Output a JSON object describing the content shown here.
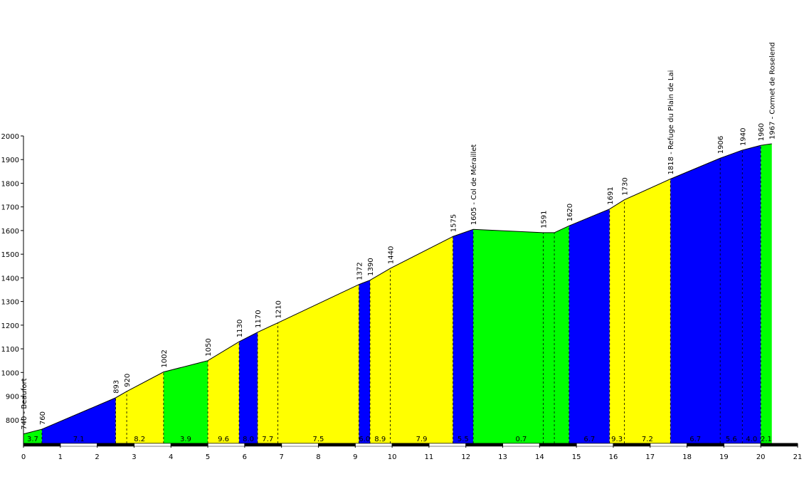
{
  "chart_data": {
    "type": "area",
    "title": "",
    "xlabel": "",
    "ylabel": "",
    "xlim": [
      0,
      21
    ],
    "ylim": [
      700,
      2000
    ],
    "grid": false,
    "legend": "none",
    "x_ticks": [
      "0",
      "1",
      "2",
      "3",
      "4",
      "5",
      "6",
      "7",
      "8",
      "9",
      "10",
      "11",
      "12",
      "13",
      "14",
      "15",
      "16",
      "17",
      "18",
      "19",
      "20",
      "21"
    ],
    "y_ticks": [
      "800",
      "900",
      "1000",
      "1100",
      "1200",
      "1300",
      "1400",
      "1500",
      "1600",
      "1700",
      "1800",
      "1900",
      "2000"
    ],
    "colors": {
      "blue": "#0000ff",
      "yellow": "#ffff00",
      "green": "#00ff00",
      "outline": "#000000"
    },
    "profile": [
      {
        "x": 0.0,
        "y": 740,
        "label": "740 - Beaufort"
      },
      {
        "x": 0.5,
        "y": 760,
        "label": "760"
      },
      {
        "x": 2.5,
        "y": 893,
        "label": "893"
      },
      {
        "x": 2.8,
        "y": 920,
        "label": "920"
      },
      {
        "x": 3.8,
        "y": 1002,
        "label": "1002"
      },
      {
        "x": 5.0,
        "y": 1050,
        "label": "1050"
      },
      {
        "x": 5.85,
        "y": 1130,
        "label": "1130"
      },
      {
        "x": 6.35,
        "y": 1170,
        "label": "1170"
      },
      {
        "x": 6.9,
        "y": 1210,
        "label": "1210"
      },
      {
        "x": 9.1,
        "y": 1372,
        "label": "1372"
      },
      {
        "x": 9.4,
        "y": 1390,
        "label": "1390"
      },
      {
        "x": 9.95,
        "y": 1440,
        "label": "1440"
      },
      {
        "x": 11.65,
        "y": 1575,
        "label": "1575"
      },
      {
        "x": 12.2,
        "y": 1605,
        "label": "1605 - Col de Méraillet"
      },
      {
        "x": 14.1,
        "y": 1591,
        "label": "1591"
      },
      {
        "x": 14.4,
        "y": 1591,
        "label": ""
      },
      {
        "x": 14.8,
        "y": 1620,
        "label": "1620"
      },
      {
        "x": 15.9,
        "y": 1691,
        "label": "1691"
      },
      {
        "x": 16.3,
        "y": 1730,
        "label": "1730"
      },
      {
        "x": 17.55,
        "y": 1818,
        "label": "1818 - Refuge du Plain de Lai"
      },
      {
        "x": 18.9,
        "y": 1906,
        "label": "1906"
      },
      {
        "x": 19.5,
        "y": 1940,
        "label": "1940"
      },
      {
        "x": 20.0,
        "y": 1960,
        "label": "1960"
      },
      {
        "x": 20.3,
        "y": 1967,
        "label": "1967 - Cormet de Roselend"
      }
    ],
    "segments": [
      {
        "from": 0.0,
        "to": 0.5,
        "color": "green",
        "gradient": "3.7"
      },
      {
        "from": 0.5,
        "to": 2.5,
        "color": "blue",
        "gradient": "7.1"
      },
      {
        "from": 2.5,
        "to": 3.8,
        "color": "yellow",
        "gradient": "8.2"
      },
      {
        "from": 3.8,
        "to": 5.0,
        "color": "green",
        "gradient": "3.9"
      },
      {
        "from": 5.0,
        "to": 5.85,
        "color": "yellow",
        "gradient": "9.6"
      },
      {
        "from": 5.85,
        "to": 6.35,
        "color": "blue",
        "gradient": "8.0"
      },
      {
        "from": 6.35,
        "to": 9.1,
        "color": "yellow",
        "gradient": "7.7"
      },
      {
        "from": 6.9,
        "to": 9.1,
        "color": "yellow",
        "gradient": "7.5"
      },
      {
        "from": 9.1,
        "to": 9.4,
        "color": "blue",
        "gradient": "6.0"
      },
      {
        "from": 9.4,
        "to": 11.65,
        "color": "yellow",
        "gradient": "8.9"
      },
      {
        "from": 9.95,
        "to": 11.65,
        "color": "yellow",
        "gradient": "7.9"
      },
      {
        "from": 11.65,
        "to": 12.2,
        "color": "blue",
        "gradient": "5.5"
      },
      {
        "from": 12.2,
        "to": 14.8,
        "color": "green",
        "gradient": "0.7"
      },
      {
        "from": 14.8,
        "to": 15.9,
        "color": "blue",
        "gradient": "6.7"
      },
      {
        "from": 15.9,
        "to": 17.55,
        "color": "yellow",
        "gradient": "9.3"
      },
      {
        "from": 16.3,
        "to": 17.55,
        "color": "yellow",
        "gradient": "7.2"
      },
      {
        "from": 17.55,
        "to": 19.5,
        "color": "blue",
        "gradient": "6.7"
      },
      {
        "from": 18.9,
        "to": 19.5,
        "color": "blue",
        "gradient": "5.6"
      },
      {
        "from": 19.5,
        "to": 20.0,
        "color": "blue",
        "gradient": "4.0"
      },
      {
        "from": 20.0,
        "to": 20.3,
        "color": "green",
        "gradient": "2.1"
      }
    ]
  }
}
